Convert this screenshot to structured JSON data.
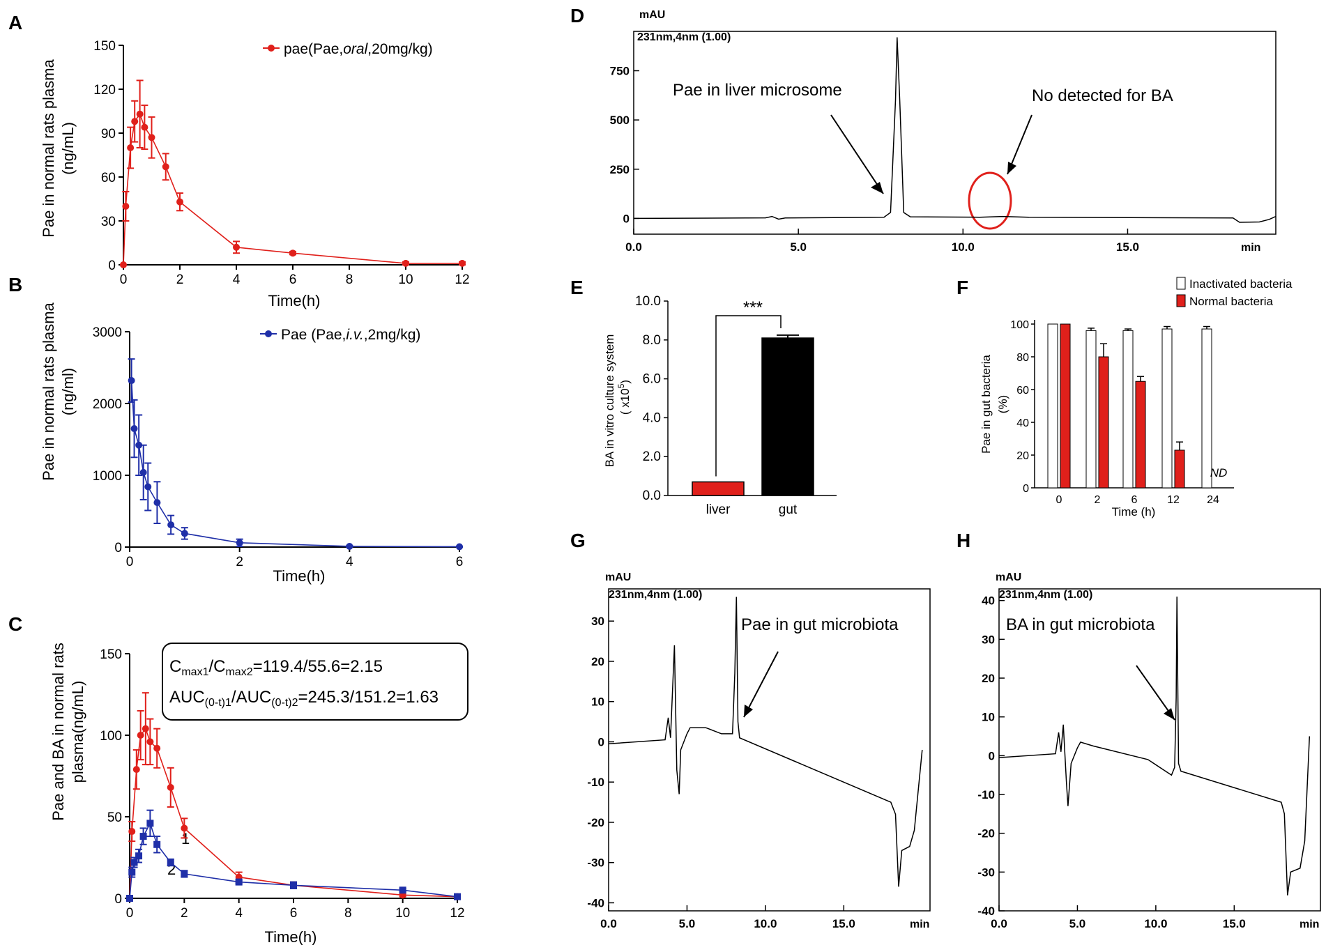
{
  "panel_labels": {
    "A": "A",
    "B": "B",
    "C": "C",
    "D": "D",
    "E": "E",
    "F": "F",
    "G": "G",
    "H": "H"
  },
  "chart_data": [
    {
      "panel": "A",
      "type": "line",
      "title": "",
      "xlabel": "Time(h)",
      "ylabel_lines": [
        "Pae in normal rats plasma",
        "(ng/mL)"
      ],
      "xlim": [
        0,
        12
      ],
      "ylim": [
        0,
        150
      ],
      "xticks": [
        0,
        2,
        4,
        6,
        8,
        10,
        12
      ],
      "yticks": [
        0,
        30,
        60,
        90,
        120,
        150
      ],
      "legend": {
        "name": "pae(Pae,",
        "italic": "oral",
        "suffix": ",20mg/kg)"
      },
      "series": [
        {
          "name": "pae(Pae,oral,20mg/kg)",
          "color": "#e0201b",
          "x": [
            0,
            0.083,
            0.25,
            0.4,
            0.583,
            0.75,
            1.0,
            1.5,
            2,
            4,
            6,
            10,
            12
          ],
          "y": [
            0,
            40,
            80,
            98,
            103,
            94,
            87,
            67,
            43,
            12,
            8,
            1,
            1
          ],
          "err": [
            0,
            10,
            14,
            14,
            23,
            15,
            14,
            9,
            6,
            4,
            1,
            1,
            1
          ]
        }
      ]
    },
    {
      "panel": "B",
      "type": "line",
      "title": "",
      "xlabel": "Time(h)",
      "ylabel_lines": [
        "Pae in normal rats plasma",
        "(ng/ml)"
      ],
      "xlim": [
        0,
        6
      ],
      "ylim": [
        0,
        3000
      ],
      "xticks": [
        0,
        2,
        4,
        6
      ],
      "yticks": [
        0,
        1000,
        2000,
        3000
      ],
      "legend": {
        "name": "Pae (Pae,",
        "italic": "i.v.",
        "suffix": ",2mg/kg)"
      },
      "series": [
        {
          "name": "Pae (Pae,i.v.,2mg/kg)",
          "color": "#1f2fa8",
          "x": [
            0.033,
            0.083,
            0.167,
            0.25,
            0.333,
            0.5,
            0.75,
            1,
            2,
            4,
            6
          ],
          "y": [
            2320,
            1650,
            1420,
            1040,
            840,
            620,
            310,
            190,
            60,
            10,
            5
          ],
          "err": [
            300,
            400,
            420,
            380,
            330,
            290,
            130,
            80,
            50,
            10,
            5
          ]
        }
      ]
    },
    {
      "panel": "C",
      "type": "line",
      "title": "",
      "xlabel": "Time(h)",
      "ylabel_lines": [
        "Pae and BA in normal rats",
        "plasma(ng/mL)"
      ],
      "xlim": [
        0,
        12
      ],
      "ylim": [
        0,
        150
      ],
      "xticks": [
        0,
        2,
        4,
        6,
        8,
        10,
        12
      ],
      "yticks": [
        0,
        50,
        100,
        150
      ],
      "annotation": {
        "line1": {
          "a": "C",
          "a_sub": "max1",
          "b": "/C",
          "b_sub": "max2",
          "c": "=119.4/55.6=2.15"
        },
        "line2": {
          "a": "AUC",
          "a_sub": "(0-t)1",
          "b": "/AUC",
          "b_sub": "(0-t)2",
          "c": "=245.3/151.2=1.63"
        }
      },
      "series": [
        {
          "name": "1",
          "color": "#e0201b",
          "x": [
            0,
            0.083,
            0.25,
            0.4,
            0.583,
            0.75,
            1.0,
            1.5,
            2,
            4,
            6,
            10,
            12
          ],
          "y": [
            0,
            41,
            79,
            100,
            104,
            96,
            92,
            68,
            43,
            13,
            8,
            2,
            1
          ],
          "err": [
            0,
            6,
            12,
            15,
            22,
            14,
            12,
            12,
            6,
            3,
            2,
            1,
            1
          ]
        },
        {
          "name": "2",
          "color": "#1f2fa8",
          "x": [
            0,
            0.083,
            0.167,
            0.333,
            0.5,
            0.75,
            1.0,
            1.5,
            2,
            4,
            6,
            10,
            12
          ],
          "y": [
            0,
            16,
            22,
            26,
            38,
            46,
            33,
            22,
            15,
            10,
            8,
            5,
            1
          ],
          "err": [
            0,
            3,
            3,
            4,
            5,
            8,
            5,
            2,
            2,
            1,
            2,
            1,
            0.5
          ]
        }
      ]
    },
    {
      "panel": "D",
      "type": "line",
      "title": "231nm,4nm (1.00)",
      "xlabel": "min",
      "ylabel": "mAU",
      "xlim": [
        0,
        19.5
      ],
      "ylim": [
        -80,
        950
      ],
      "xticks": [
        "0.0",
        "5.0",
        "10.0",
        "15.0"
      ],
      "yticks": [
        0,
        250,
        500,
        750
      ],
      "annotations": [
        "Pae in liver microsome",
        "No detected for BA"
      ],
      "peaks": [
        {
          "x": 8.0,
          "y": 920
        }
      ]
    },
    {
      "panel": "E",
      "type": "bar",
      "title": "",
      "ylabel_lines": [
        "BA in vitro culture system",
        "( x10",
        "5",
        ")"
      ],
      "categories": [
        "liver",
        "gut"
      ],
      "values": [
        0.7,
        8.1
      ],
      "err": [
        0,
        0.15
      ],
      "colors": [
        "#e0201b",
        "#000000"
      ],
      "ylim": [
        0,
        10
      ],
      "yticks": [
        "0.0",
        "2.0",
        "4.0",
        "6.0",
        "8.0",
        "10.0"
      ],
      "significance": "***"
    },
    {
      "panel": "F",
      "type": "bar",
      "title": "",
      "xlabel": "Time (h)",
      "ylabel_lines": [
        "Pae in gut bacteria",
        "(%)"
      ],
      "categories": [
        "0",
        "2",
        "6",
        "12",
        "24"
      ],
      "ylim": [
        0,
        100
      ],
      "yticks": [
        0,
        20,
        40,
        60,
        80,
        100
      ],
      "nd_label": "ND",
      "series": [
        {
          "name": "Inactivated bacteria",
          "color": "#ffffff",
          "values": [
            100,
            96,
            96,
            97,
            97
          ],
          "err": [
            0,
            1.5,
            1,
            1.5,
            1.5
          ]
        },
        {
          "name": "Normal bacteria",
          "color": "#e0201b",
          "values": [
            100,
            80,
            65,
            23,
            null
          ],
          "err": [
            0,
            8,
            3,
            5,
            null
          ]
        }
      ]
    },
    {
      "panel": "G",
      "type": "line",
      "title": "231nm,4nm (1.00)",
      "xlabel": "min",
      "ylabel": "mAU",
      "xlim": [
        0,
        20.5
      ],
      "ylim": [
        -42,
        38
      ],
      "xticks": [
        "0.0",
        "5.0",
        "10.0",
        "15.0"
      ],
      "yticks": [
        -40,
        -30,
        -20,
        -10,
        0,
        10,
        20,
        30
      ],
      "annotations": [
        "Pae in gut microbiota"
      ]
    },
    {
      "panel": "H",
      "type": "line",
      "title": "231nm,4nm (1.00)",
      "xlabel": "min",
      "ylabel": "mAU",
      "xlim": [
        0,
        20.5
      ],
      "ylim": [
        -40,
        43
      ],
      "xticks": [
        "0.0",
        "5.0",
        "10.0",
        "15.0"
      ],
      "yticks": [
        -40,
        -30,
        -20,
        -10,
        0,
        10,
        20,
        30,
        40
      ],
      "annotations": [
        "BA in gut microbiota"
      ]
    }
  ]
}
